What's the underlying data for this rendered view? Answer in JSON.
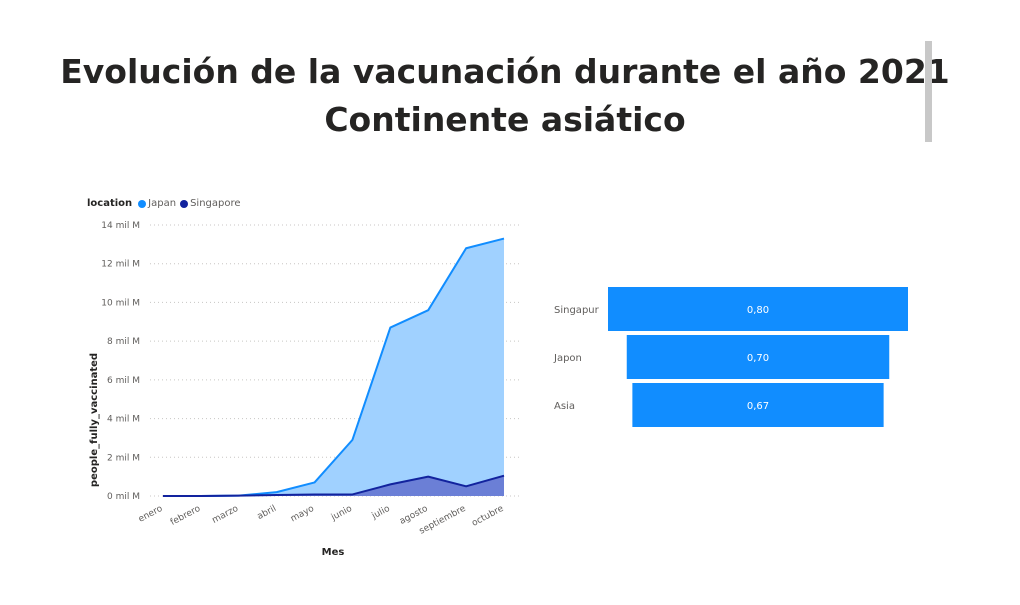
{
  "title_line1": "Evolución de la vacunación durante el año 2021",
  "title_line2": "Continente asiático",
  "legend_title": "location",
  "colors": {
    "japan_line": "#118dff",
    "japan_fill": "#a0d1ff",
    "singapore_line": "#12239e",
    "singapore_fill": "#6b7fd6",
    "funnel": "#118dff"
  },
  "chart_data": [
    {
      "type": "area",
      "xlabel": "Mes",
      "ylabel": "people_fully_vaccinated",
      "categories": [
        "enero",
        "febrero",
        "marzo",
        "abril",
        "mayo",
        "junio",
        "julio",
        "agosto",
        "septiembre",
        "octubre"
      ],
      "y_ticks": [
        0,
        2,
        4,
        6,
        8,
        10,
        12,
        14
      ],
      "y_tick_labels": [
        "0 mil M",
        "2 mil M",
        "4 mil M",
        "6 mil M",
        "8 mil M",
        "10 mil M",
        "12 mil M",
        "14 mil M"
      ],
      "ylim": [
        0,
        14
      ],
      "grid": true,
      "legend_position": "top-left",
      "series": [
        {
          "name": "Japan",
          "values": [
            0.0,
            0.0,
            0.02,
            0.2,
            0.7,
            2.9,
            8.7,
            9.6,
            12.8,
            13.3
          ]
        },
        {
          "name": "Singapore",
          "values": [
            0.0,
            0.0,
            0.02,
            0.05,
            0.08,
            0.08,
            0.6,
            1.0,
            0.5,
            1.05
          ]
        }
      ]
    },
    {
      "type": "funnel",
      "categories": [
        "Singapur",
        "Japon",
        "Asia"
      ],
      "values": [
        0.8,
        0.7,
        0.67
      ],
      "value_labels": [
        "0,80",
        "0,70",
        "0,67"
      ]
    }
  ]
}
